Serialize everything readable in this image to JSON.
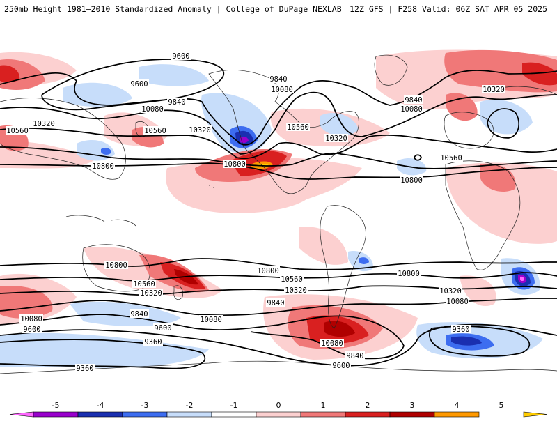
{
  "header": {
    "title": "250mb Height 1981–2010 Standardized Anomaly | College of DuPage NEXLAB",
    "run_info": "12Z GFS | F258 Valid: 06Z SAT APR 05 2025"
  },
  "colors": {
    "contour_line": "#000000",
    "coastline": "#222222",
    "map_background": "#ffffff"
  },
  "colorbar": {
    "ticks": [
      "-5",
      "-4",
      "-3",
      "-2",
      "-1",
      "0",
      "1",
      "2",
      "3",
      "4",
      "5"
    ],
    "bins": [
      {
        "range": "< -4.5",
        "color": "#ff66ff"
      },
      {
        "range": "-4.5 to -3.5",
        "color": "#9900cc"
      },
      {
        "range": "-3.5 to -2.5",
        "color": "#1a2fb0"
      },
      {
        "range": "-2.5 to -1.5",
        "color": "#3d6df0"
      },
      {
        "range": "-1.5 to -0.5",
        "color": "#c7ddfa"
      },
      {
        "range": "-0.5 to 0.5",
        "color": "#ffffff"
      },
      {
        "range": "0.5 to 1.5",
        "color": "#fcd0d0"
      },
      {
        "range": "1.5 to 2.5",
        "color": "#f07878"
      },
      {
        "range": "2.5 to 3.5",
        "color": "#d92020"
      },
      {
        "range": "3.5 to 4.5",
        "color": "#b00000"
      },
      {
        "range": "4.5 to 5.5",
        "color": "#ff9900"
      },
      {
        "range": "> 5.5",
        "color": "#ffcc00"
      }
    ]
  },
  "map": {
    "projection": "global cylindrical",
    "contour_levels": [
      "9360",
      "9600",
      "9840",
      "10080",
      "10320",
      "10560",
      "10800"
    ],
    "contour_labels": [
      {
        "text": "9600",
        "level": 9600
      },
      {
        "text": "9600",
        "level": 9600
      },
      {
        "text": "9840",
        "level": 9840
      },
      {
        "text": "9840",
        "level": 9840
      },
      {
        "text": "9840",
        "level": 9840
      },
      {
        "text": "10080",
        "level": 10080
      },
      {
        "text": "10080",
        "level": 10080
      },
      {
        "text": "10080",
        "level": 10080
      },
      {
        "text": "10320",
        "level": 10320
      },
      {
        "text": "10320",
        "level": 10320
      },
      {
        "text": "10320",
        "level": 10320
      },
      {
        "text": "10320",
        "level": 10320
      },
      {
        "text": "10560",
        "level": 10560
      },
      {
        "text": "10560",
        "level": 10560
      },
      {
        "text": "10560",
        "level": 10560
      },
      {
        "text": "10560",
        "level": 10560
      },
      {
        "text": "10800",
        "level": 10800
      },
      {
        "text": "10800",
        "level": 10800
      },
      {
        "text": "10800",
        "level": 10800
      },
      {
        "text": "10800",
        "level": 10800
      },
      {
        "text": "10800",
        "level": 10800
      },
      {
        "text": "10800",
        "level": 10800
      },
      {
        "text": "10560",
        "level": 10560
      },
      {
        "text": "10560",
        "level": 10560
      },
      {
        "text": "10320",
        "level": 10320
      },
      {
        "text": "10320",
        "level": 10320
      },
      {
        "text": "10320",
        "level": 10320
      },
      {
        "text": "10080",
        "level": 10080
      },
      {
        "text": "10080",
        "level": 10080
      },
      {
        "text": "10080",
        "level": 10080
      },
      {
        "text": "10080",
        "level": 10080
      },
      {
        "text": "9840",
        "level": 9840
      },
      {
        "text": "9840",
        "level": 9840
      },
      {
        "text": "9840",
        "level": 9840
      },
      {
        "text": "9600",
        "level": 9600
      },
      {
        "text": "9600",
        "level": 9600
      },
      {
        "text": "9600",
        "level": 9600
      },
      {
        "text": "9360",
        "level": 9360
      },
      {
        "text": "9360",
        "level": 9360
      },
      {
        "text": "9360",
        "level": 9360
      }
    ]
  }
}
